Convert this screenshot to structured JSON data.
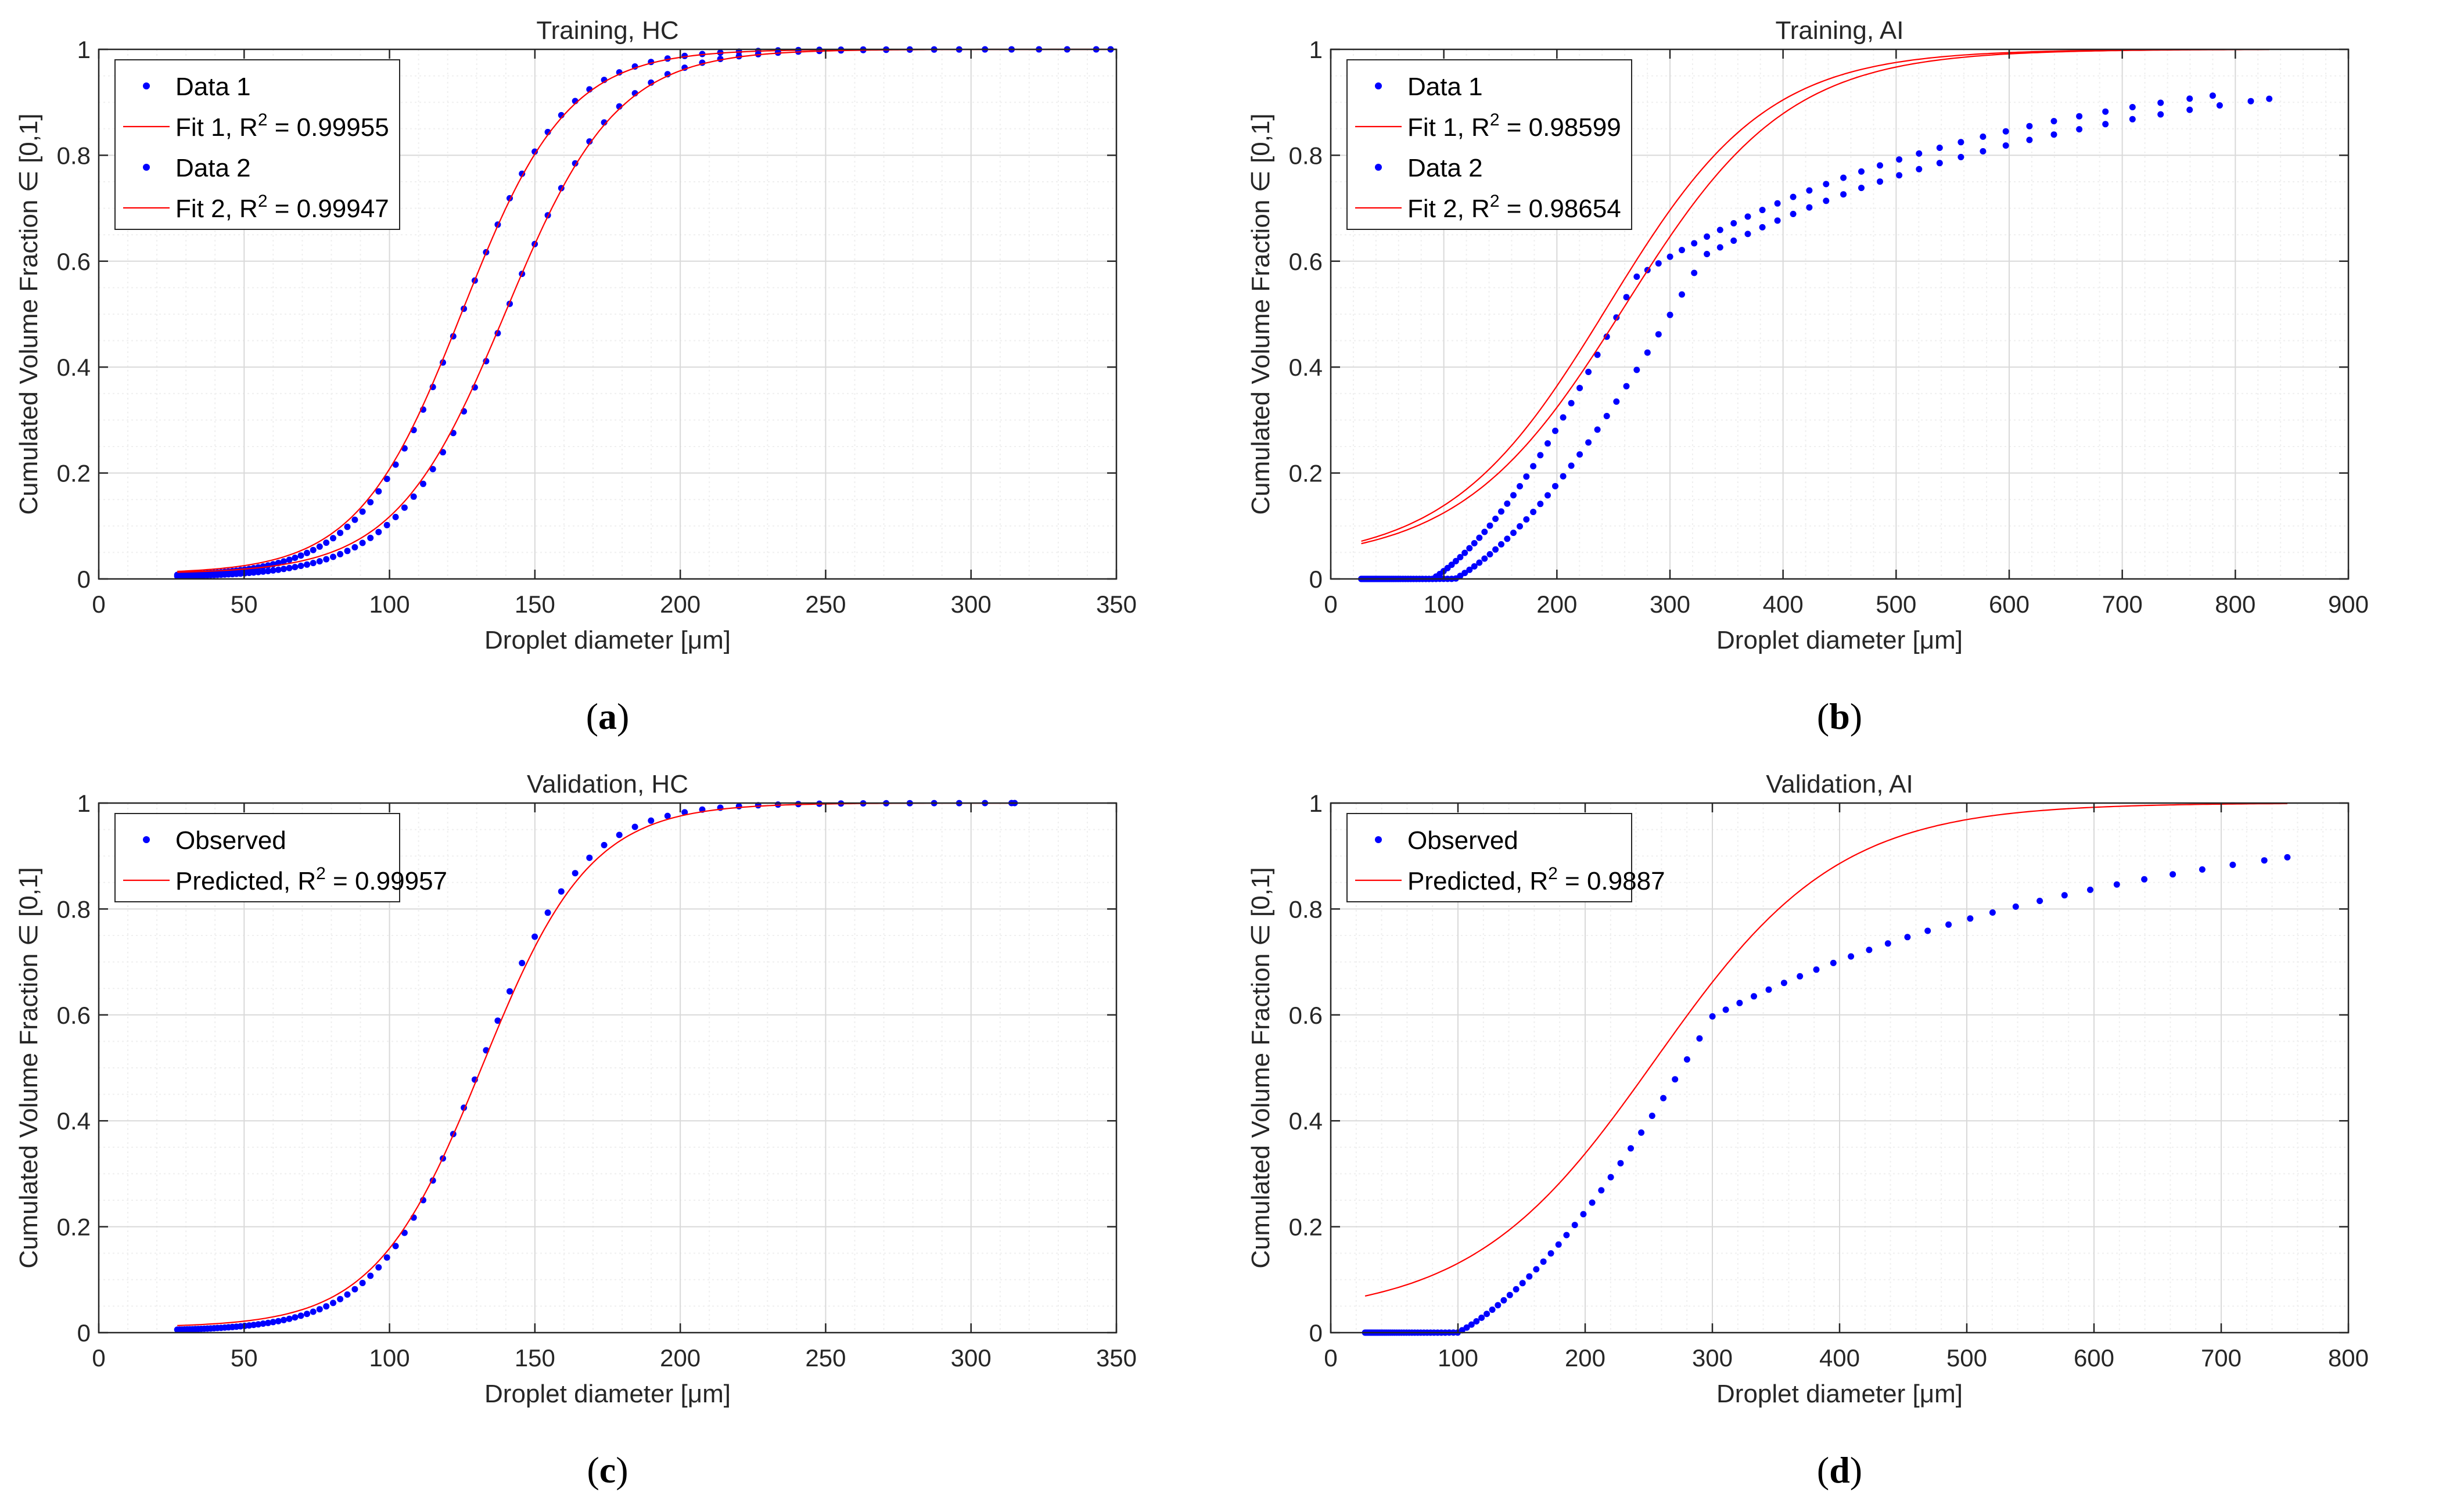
{
  "colors": {
    "data": "#0000ff",
    "fit": "#ff0000",
    "grid": "#d9d9d9",
    "minor_grid": "#efefef",
    "axis": "#262626"
  },
  "panel_labels": [
    "a",
    "b",
    "c",
    "d"
  ],
  "common": {
    "xlabel_pre": "Droplet diameter [",
    "xlabel_mu": "μ",
    "xlabel_post": "m]",
    "ylabel_pre": "Cumulated Volume Fraction ",
    "ylabel_in": "∈",
    "ylabel_post": " [0,1]"
  },
  "chart_data": [
    {
      "type": "scatter",
      "title": "Training, HC",
      "xlabel": "Droplet diameter [μm]",
      "ylabel": "Cumulated Volume Fraction ∈ [0,1]",
      "xlim": [
        0,
        350
      ],
      "ylim": [
        0,
        1
      ],
      "xticks": [
        0,
        50,
        100,
        150,
        200,
        250,
        300,
        350
      ],
      "yticks": [
        0,
        0.2,
        0.4,
        0.6,
        0.8,
        1
      ],
      "grid": true,
      "legend_position": "top-left",
      "series": [
        {
          "name": "Data 1",
          "kind": "points",
          "model": {
            "type": "logistic",
            "x0": 125,
            "s": 17.5,
            "floor": 0.004
          },
          "x_start": 27,
          "x_end": 348
        },
        {
          "name": "Fit 1",
          "r2_label": "R",
          "r2_sup": "2",
          "r2_value": " = 0.99955",
          "kind": "line",
          "model": {
            "type": "logistic",
            "x0": 125,
            "s": 18,
            "floor": 0.01
          },
          "x_start": 27,
          "x_end": 348
        },
        {
          "name": "Data 2",
          "kind": "points",
          "model": {
            "type": "logistic",
            "x0": 140,
            "s": 18.5,
            "floor": 0.003
          },
          "x_start": 27,
          "x_end": 348
        },
        {
          "name": "Fit 2",
          "r2_label": "R",
          "r2_sup": "2",
          "r2_value": " = 0.99947",
          "kind": "line",
          "model": {
            "type": "logistic",
            "x0": 140,
            "s": 19,
            "floor": 0.01
          },
          "x_start": 27,
          "x_end": 348
        }
      ]
    },
    {
      "type": "scatter",
      "title": "Training, AI",
      "xlabel": "Droplet diameter [μm]",
      "ylabel": "Cumulated Volume Fraction ∈ [0,1]",
      "xlim": [
        0,
        900
      ],
      "ylim": [
        0,
        1
      ],
      "xticks": [
        0,
        100,
        200,
        300,
        400,
        500,
        600,
        700,
        800,
        900
      ],
      "yticks": [
        0,
        0.2,
        0.4,
        0.6,
        0.8,
        1
      ],
      "grid": true,
      "legend_position": "top-left",
      "series": [
        {
          "name": "Data 1",
          "kind": "points",
          "model": {
            "type": "skewed",
            "k": 4.1,
            "lambda": 230,
            "c": 320,
            "t": 90
          },
          "x_start": 27,
          "x_end": 780
        },
        {
          "name": "Fit 1",
          "r2_label": "R",
          "r2_sup": "2",
          "r2_value": " = 0.98599",
          "kind": "line",
          "model": {
            "type": "logistic",
            "x0": 245,
            "s": 70,
            "floor": 0.03
          },
          "x_start": 27,
          "x_end": 780
        },
        {
          "name": "Data 2",
          "kind": "points",
          "model": {
            "type": "skewed",
            "k": 4.1,
            "lambda": 240,
            "c": 350,
            "t": 110
          },
          "x_start": 27,
          "x_end": 830
        },
        {
          "name": "Fit 2",
          "r2_label": "R",
          "r2_sup": "2",
          "r2_value": " = 0.98654",
          "kind": "line",
          "model": {
            "type": "logistic",
            "x0": 260,
            "s": 72,
            "floor": 0.03
          },
          "x_start": 27,
          "x_end": 830
        }
      ]
    },
    {
      "type": "scatter",
      "title": "Validation, HC",
      "xlabel": "Droplet diameter [μm]",
      "ylabel": "Cumulated Volume Fraction ∈ [0,1]",
      "xlim": [
        0,
        350
      ],
      "ylim": [
        0,
        1
      ],
      "xticks": [
        0,
        50,
        100,
        150,
        200,
        250,
        300,
        350
      ],
      "yticks": [
        0,
        0.2,
        0.4,
        0.6,
        0.8,
        1
      ],
      "grid": true,
      "legend_position": "top-left",
      "series": [
        {
          "name": "Observed",
          "kind": "points",
          "model": {
            "type": "logistic",
            "x0": 131,
            "s": 17.5,
            "floor": 0.003
          },
          "x_start": 27,
          "x_end": 315
        },
        {
          "name": "Predicted",
          "r2_label": "R",
          "r2_sup": "2",
          "r2_value": " = 0.99957",
          "kind": "line",
          "model": {
            "type": "logistic",
            "x0": 132,
            "s": 18.5,
            "floor": 0.01
          },
          "x_start": 27,
          "x_end": 315
        }
      ]
    },
    {
      "type": "scatter",
      "title": "Validation, AI",
      "xlabel": "Droplet diameter [μm]",
      "ylabel": "Cumulated Volume Fraction ∈ [0,1]",
      "xlim": [
        0,
        800
      ],
      "ylim": [
        0,
        1
      ],
      "xticks": [
        0,
        100,
        200,
        300,
        400,
        500,
        600,
        700,
        800
      ],
      "yticks": [
        0,
        0.2,
        0.4,
        0.6,
        0.8,
        1
      ],
      "grid": true,
      "legend_position": "top-left",
      "series": [
        {
          "name": "Observed",
          "kind": "points",
          "model": {
            "type": "skewed",
            "k": 4.1,
            "lambda": 235,
            "c": 330,
            "t": 100
          },
          "x_start": 27,
          "x_end": 752
        },
        {
          "name": "Predicted",
          "r2_label": "R",
          "r2_sup": "2",
          "r2_value": " = 0.9887",
          "kind": "line",
          "model": {
            "type": "logistic",
            "x0": 255,
            "s": 72,
            "floor": 0.03
          },
          "x_start": 27,
          "x_end": 752
        }
      ]
    }
  ]
}
